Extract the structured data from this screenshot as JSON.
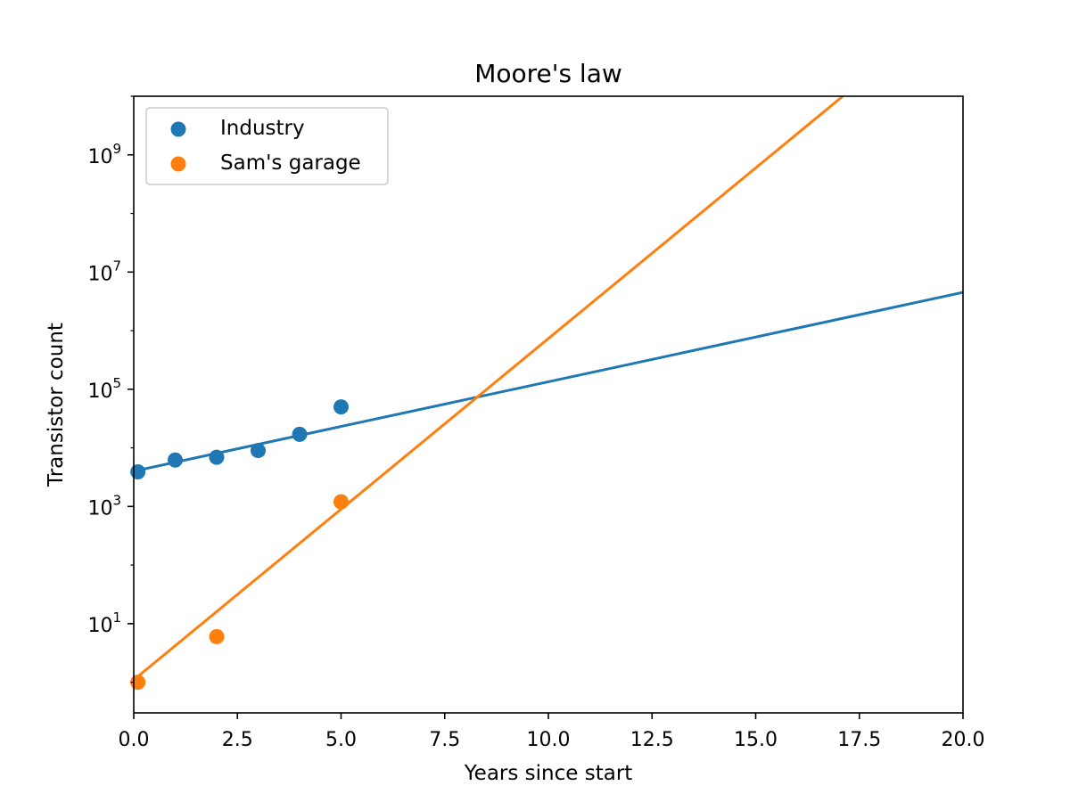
{
  "chart_data": {
    "type": "scatter",
    "title": "Moore's law",
    "xlabel": "Years since start",
    "ylabel": "Transistor count",
    "xlim": [
      0,
      20
    ],
    "ylim": [
      0.3,
      10000000000
    ],
    "yscale": "log",
    "grid": false,
    "legend_position": "top-left",
    "x_ticks": [
      "0.0",
      "2.5",
      "5.0",
      "7.5",
      "10.0",
      "12.5",
      "15.0",
      "17.5",
      "20.0"
    ],
    "y_ticks": [
      {
        "base": "10",
        "exp": "1",
        "value": 10
      },
      {
        "base": "10",
        "exp": "3",
        "value": 1000
      },
      {
        "base": "10",
        "exp": "5",
        "value": 100000
      },
      {
        "base": "10",
        "exp": "7",
        "value": 10000000
      },
      {
        "base": "10",
        "exp": "9",
        "value": 1000000000
      }
    ],
    "series": [
      {
        "name": "Industry",
        "color": "#1f77b4",
        "points": [
          {
            "x": 0.1,
            "y": 3900
          },
          {
            "x": 1,
            "y": 6200
          },
          {
            "x": 2,
            "y": 6900
          },
          {
            "x": 3,
            "y": 9000
          },
          {
            "x": 4,
            "y": 17000
          },
          {
            "x": 5,
            "y": 50000
          }
        ],
        "fit": [
          {
            "x": 0,
            "y": 4000
          },
          {
            "x": 20,
            "y": 4500000
          }
        ]
      },
      {
        "name": "Sam's garage",
        "color": "#ff7f0e",
        "points": [
          {
            "x": 0.1,
            "y": 1
          },
          {
            "x": 2,
            "y": 6
          },
          {
            "x": 5,
            "y": 1200
          }
        ],
        "fit": [
          {
            "x": 0,
            "y": 1.1
          },
          {
            "x": 17.1,
            "y": 10000000000
          }
        ]
      }
    ]
  }
}
